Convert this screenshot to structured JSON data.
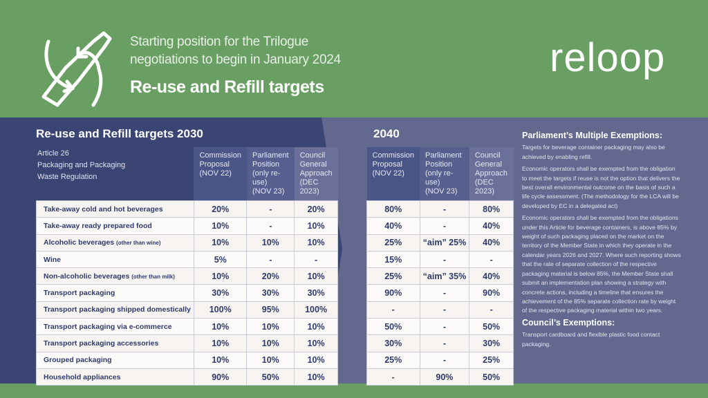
{
  "header": {
    "subtitle_line1": "Starting position for the Trilogue",
    "subtitle_line2": "negotiations to begin in January 2024",
    "title": "Re-use and Refill targets",
    "brand": "reloop"
  },
  "colors": {
    "green": "#6a9f63",
    "navy": "#3a4574",
    "slate": "#63688f"
  },
  "left": {
    "heading": "Re-use and Refill targets 2030",
    "article": [
      "Article 26",
      "Packaging and Packaging",
      "Waste Regulation"
    ],
    "columns": [
      [
        "Commission",
        "Proposal",
        "(NOV 22)"
      ],
      [
        "Parliament",
        "Position",
        "(only re-use)",
        "(NOV 23)"
      ],
      [
        "Council",
        "General",
        "Approach",
        "(DEC 2023)"
      ]
    ]
  },
  "right": {
    "heading": "2040"
  },
  "rows": [
    {
      "label": "Take-away cold and hot beverages",
      "note": "",
      "y2030": [
        "20%",
        "-",
        "20%"
      ],
      "y2040": [
        "80%",
        "-",
        "80%"
      ]
    },
    {
      "label": "Take-away ready prepared food",
      "note": "",
      "y2030": [
        "10%",
        "-",
        "10%"
      ],
      "y2040": [
        "40%",
        "-",
        "40%"
      ]
    },
    {
      "label": "Alcoholic beverages",
      "note": "(other than wine)",
      "y2030": [
        "10%",
        "10%",
        "10%"
      ],
      "y2040": [
        "25%",
        "“aim” 25%",
        "40%"
      ]
    },
    {
      "label": "Wine",
      "note": "",
      "y2030": [
        "5%",
        "-",
        "-"
      ],
      "y2040": [
        "15%",
        "-",
        "-"
      ]
    },
    {
      "label": "Non-alcoholic beverages",
      "note": "(other than milk)",
      "y2030": [
        "10%",
        "20%",
        "10%"
      ],
      "y2040": [
        "25%",
        "“aim” 35%",
        "40%"
      ]
    },
    {
      "label": "Transport packaging",
      "note": "",
      "y2030": [
        "30%",
        "30%",
        "30%"
      ],
      "y2040": [
        "90%",
        "-",
        "90%"
      ]
    },
    {
      "label": "Transport packaging shipped domestically",
      "note": "",
      "y2030": [
        "100%",
        "95%",
        "100%"
      ],
      "y2040": [
        "-",
        "-",
        "-"
      ]
    },
    {
      "label": "Transport packaging via e-commerce",
      "note": "",
      "y2030": [
        "10%",
        "10%",
        "10%"
      ],
      "y2040": [
        "50%",
        "-",
        "50%"
      ]
    },
    {
      "label": "Transport packaging accessories",
      "note": "",
      "y2030": [
        "10%",
        "10%",
        "10%"
      ],
      "y2040": [
        "30%",
        "-",
        "30%"
      ]
    },
    {
      "label": "Grouped packaging",
      "note": "",
      "y2030": [
        "10%",
        "10%",
        "10%"
      ],
      "y2040": [
        "25%",
        "-",
        "25%"
      ]
    },
    {
      "label": "Household appliances",
      "note": "",
      "y2030": [
        "90%",
        "50%",
        "10%"
      ],
      "y2040": [
        "-",
        "90%",
        "50%"
      ]
    }
  ],
  "side": {
    "parliament_heading": "Parliament’s Multiple Exemptions:",
    "p1": "Targets for beverage container packaging may also be achieved by enabling refill.",
    "p2": "Economic operators shall be exempted from the obligation to meet the targets if reuse is not the option that delivers the best overall environmental outcome on the basis of such a life cycle assessment. (The methodology for the LCA will be developed by EC in a delegated act)",
    "p3": "Economic operators shall be exempted from the obligations under this Article for beverage containers, is above 85% by weight of such packaging placed on the market on the territory of the Member State in which they operate in the calendar years 2026 and 2027. Where such reporting shows that the rate of separate collection of the respective packaging material is below 85%, the Member State shall submit an implementation plan showing a strategy with concrete actions, including a timeline that ensures the achievement of the 85% separate collection rate by weight of the respective packaging material within two years.",
    "council_heading": "Council’s Exemptions:",
    "p4": "Transport cardboard and flexible plastic food contact packaging."
  }
}
